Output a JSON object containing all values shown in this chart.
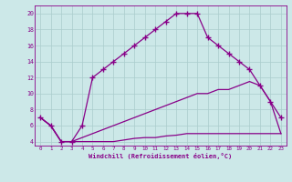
{
  "xlabel": "Windchill (Refroidissement éolien,°C)",
  "bg_color": "#cce8e8",
  "line_color": "#880088",
  "grid_color": "#aacccc",
  "xlim": [
    -0.5,
    23.5
  ],
  "ylim": [
    3.5,
    21
  ],
  "xticks": [
    0,
    1,
    2,
    3,
    4,
    5,
    6,
    7,
    8,
    9,
    10,
    11,
    12,
    13,
    14,
    15,
    16,
    17,
    18,
    19,
    20,
    21,
    22,
    23
  ],
  "yticks": [
    4,
    6,
    8,
    10,
    12,
    14,
    16,
    18,
    20
  ],
  "curve1_x": [
    0,
    1,
    2,
    3,
    4,
    5,
    6,
    7,
    8,
    9,
    10,
    11,
    12,
    13,
    14,
    15,
    16,
    17,
    18,
    19,
    20,
    21,
    22,
    23
  ],
  "curve1_y": [
    7,
    6,
    4,
    4,
    6,
    12,
    13,
    14,
    15,
    16,
    17,
    18,
    19,
    20,
    20,
    20,
    17,
    16,
    15,
    14,
    13,
    11,
    9,
    7
  ],
  "curve2_x": [
    0,
    1,
    2,
    3,
    4,
    5,
    6,
    7,
    8,
    9,
    10,
    11,
    12,
    13,
    14,
    15,
    16,
    17,
    18,
    19,
    20,
    21,
    22,
    23
  ],
  "curve2_y": [
    7,
    6,
    4,
    4,
    4.5,
    5,
    5.5,
    6,
    6.5,
    7,
    7.5,
    8,
    8.5,
    9,
    9.5,
    10,
    10,
    10.5,
    10.5,
    11,
    11.5,
    11,
    9,
    5
  ],
  "curve3_x": [
    0,
    1,
    2,
    3,
    4,
    5,
    6,
    7,
    8,
    9,
    10,
    11,
    12,
    13,
    14,
    15,
    16,
    17,
    18,
    19,
    20,
    21,
    22,
    23
  ],
  "curve3_y": [
    7,
    6,
    4,
    4,
    4,
    4,
    4,
    4,
    4.2,
    4.4,
    4.5,
    4.5,
    4.7,
    4.8,
    5,
    5,
    5,
    5,
    5,
    5,
    5,
    5,
    5,
    5
  ]
}
